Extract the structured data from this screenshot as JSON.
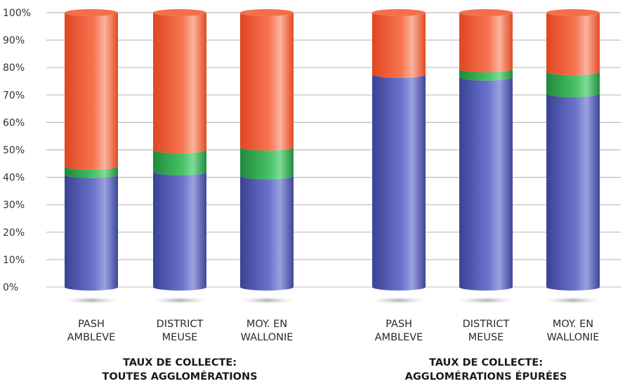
{
  "chart_data": {
    "type": "bar",
    "stacked": true,
    "style": "3d-cylinder",
    "ylim": [
      0,
      100
    ],
    "y_tick_labels": [
      "0%",
      "10%",
      "20%",
      "30%",
      "40%",
      "50%",
      "60%",
      "70%",
      "80%",
      "90%",
      "100%"
    ],
    "grid": true,
    "legend": "none",
    "series_colors": [
      "#4d57b3",
      "#2ea84e",
      "#ef5a36"
    ],
    "groups": [
      {
        "label_lines": [
          "TAUX DE COLLECTE:",
          "TOUTES AGGLOMÉRATIONS"
        ],
        "categories": [
          {
            "label_lines": [
              "PASH",
              "AMBLEVE"
            ],
            "values": [
              41,
              3,
              56
            ]
          },
          {
            "label_lines": [
              "DISTRICT",
              "MEUSE"
            ],
            "values": [
              42,
              8,
              50
            ]
          },
          {
            "label_lines": [
              "MOY. EN",
              "WALLONIE"
            ],
            "values": [
              40.5,
              10.5,
              49
            ]
          }
        ]
      },
      {
        "label_lines": [
          "TAUX DE COLLECTE:",
          "AGGLOMÉRATIONS ÉPURÉES"
        ],
        "categories": [
          {
            "label_lines": [
              "PASH",
              "AMBLEVE"
            ],
            "values": [
              77.5,
              0,
              22.5
            ]
          },
          {
            "label_lines": [
              "DISTRICT",
              "MEUSE"
            ],
            "values": [
              76.5,
              3,
              20.5
            ]
          },
          {
            "label_lines": [
              "MOY. EN",
              "WALLONIE"
            ],
            "values": [
              70.5,
              8,
              21.5
            ]
          }
        ]
      }
    ]
  }
}
